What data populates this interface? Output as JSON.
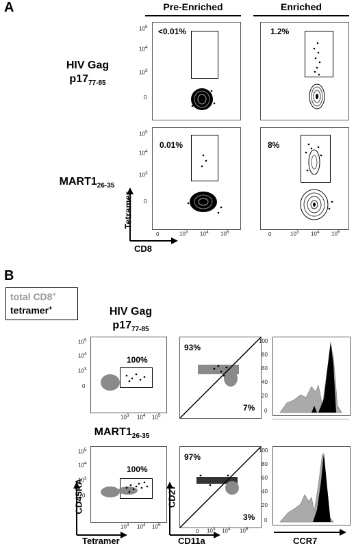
{
  "panel_a": {
    "letter": "A",
    "columns": [
      "Pre-Enriched",
      "Enriched"
    ],
    "rows": [
      {
        "label_main": "HIV Gag",
        "label_name": "p17",
        "label_sub": "77-85"
      },
      {
        "label_main": "",
        "label_name": "MART1",
        "label_sub": "26-35"
      }
    ],
    "percentages": {
      "hiv_pre": "<0.01%",
      "hiv_enr": "1.2%",
      "mart_pre": "0.01%",
      "mart_enr": "8%"
    },
    "y_ticks": [
      "10",
      "10",
      "10",
      "0"
    ],
    "y_tick_exp": [
      "5",
      "4",
      "3",
      ""
    ],
    "x_ticks": [
      "0",
      "10",
      "10",
      "10"
    ],
    "x_tick_exp": [
      "",
      "3",
      "4",
      "5"
    ],
    "y_axis_label": "Tetramer",
    "x_axis_label": "CD8"
  },
  "panel_b": {
    "letter": "B",
    "legend": {
      "line1": "total CD8",
      "line1_sup": "+",
      "line2": "tetramer",
      "line2_sup": "+",
      "color_total": "#999999",
      "color_tetramer": "#000000"
    },
    "rows": [
      {
        "label_main": "HIV Gag",
        "label_name": "p17",
        "label_sub": "77-85",
        "gate_pct": "100%",
        "quad_top": "93%",
        "quad_bottom": "7%"
      },
      {
        "label_main": "",
        "label_name": "MART1",
        "label_sub": "26-35",
        "gate_pct": "100%",
        "quad_top": "97%",
        "quad_bottom": "3%"
      }
    ],
    "hist_ticks": [
      "100",
      "80",
      "60",
      "40",
      "20",
      "0"
    ],
    "axis_labels": {
      "plot1_y": "CD45RA",
      "plot1_x": "Tetramer",
      "plot2_y": "CD27",
      "plot2_x": "CD11a",
      "plot3_x": "CCR7"
    }
  }
}
